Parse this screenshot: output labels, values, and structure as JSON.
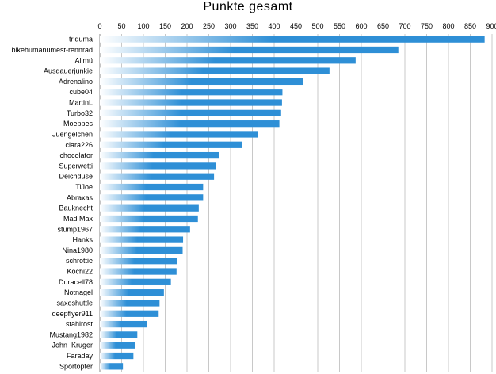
{
  "chart_data": {
    "type": "bar",
    "orientation": "horizontal",
    "title": "Punkte gesamt",
    "xlim": [
      0,
      900
    ],
    "ticks": [
      0,
      50,
      100,
      150,
      200,
      250,
      300,
      350,
      400,
      450,
      500,
      550,
      600,
      650,
      700,
      750,
      800,
      850,
      900
    ],
    "grid": true,
    "bar_color": "#2e8fd6",
    "bar_gradient_start": "#ffffff",
    "categories": [
      "triduma",
      "bikehumanumest-rennrad",
      "Allmü",
      "Ausdauerjunkie",
      "Adrenalino",
      "cube04",
      "MartinL",
      "Turbo32",
      "Moeppes",
      "Juengelchen",
      "clara226",
      "chocolator",
      "Superwetti",
      "Deichdüse",
      "TiJoe",
      "Abraxas",
      "Bauknecht",
      "Mad Max",
      "stump1967",
      "Hanks",
      "Nina1980",
      "schrottie",
      "Kochi22",
      "Duracell78",
      "Notnagel",
      "saxoshuttle",
      "deepflyer911",
      "stahlrost",
      "Mustang1982",
      "John_Kruger",
      "Faraday",
      "Sportopfer"
    ],
    "values": [
      883,
      685,
      587,
      527,
      467,
      419,
      418,
      416,
      412,
      362,
      327,
      274,
      267,
      262,
      237,
      237,
      227,
      225,
      207,
      191,
      190,
      177,
      176,
      163,
      147,
      137,
      135,
      109,
      86,
      81,
      77,
      53
    ]
  }
}
